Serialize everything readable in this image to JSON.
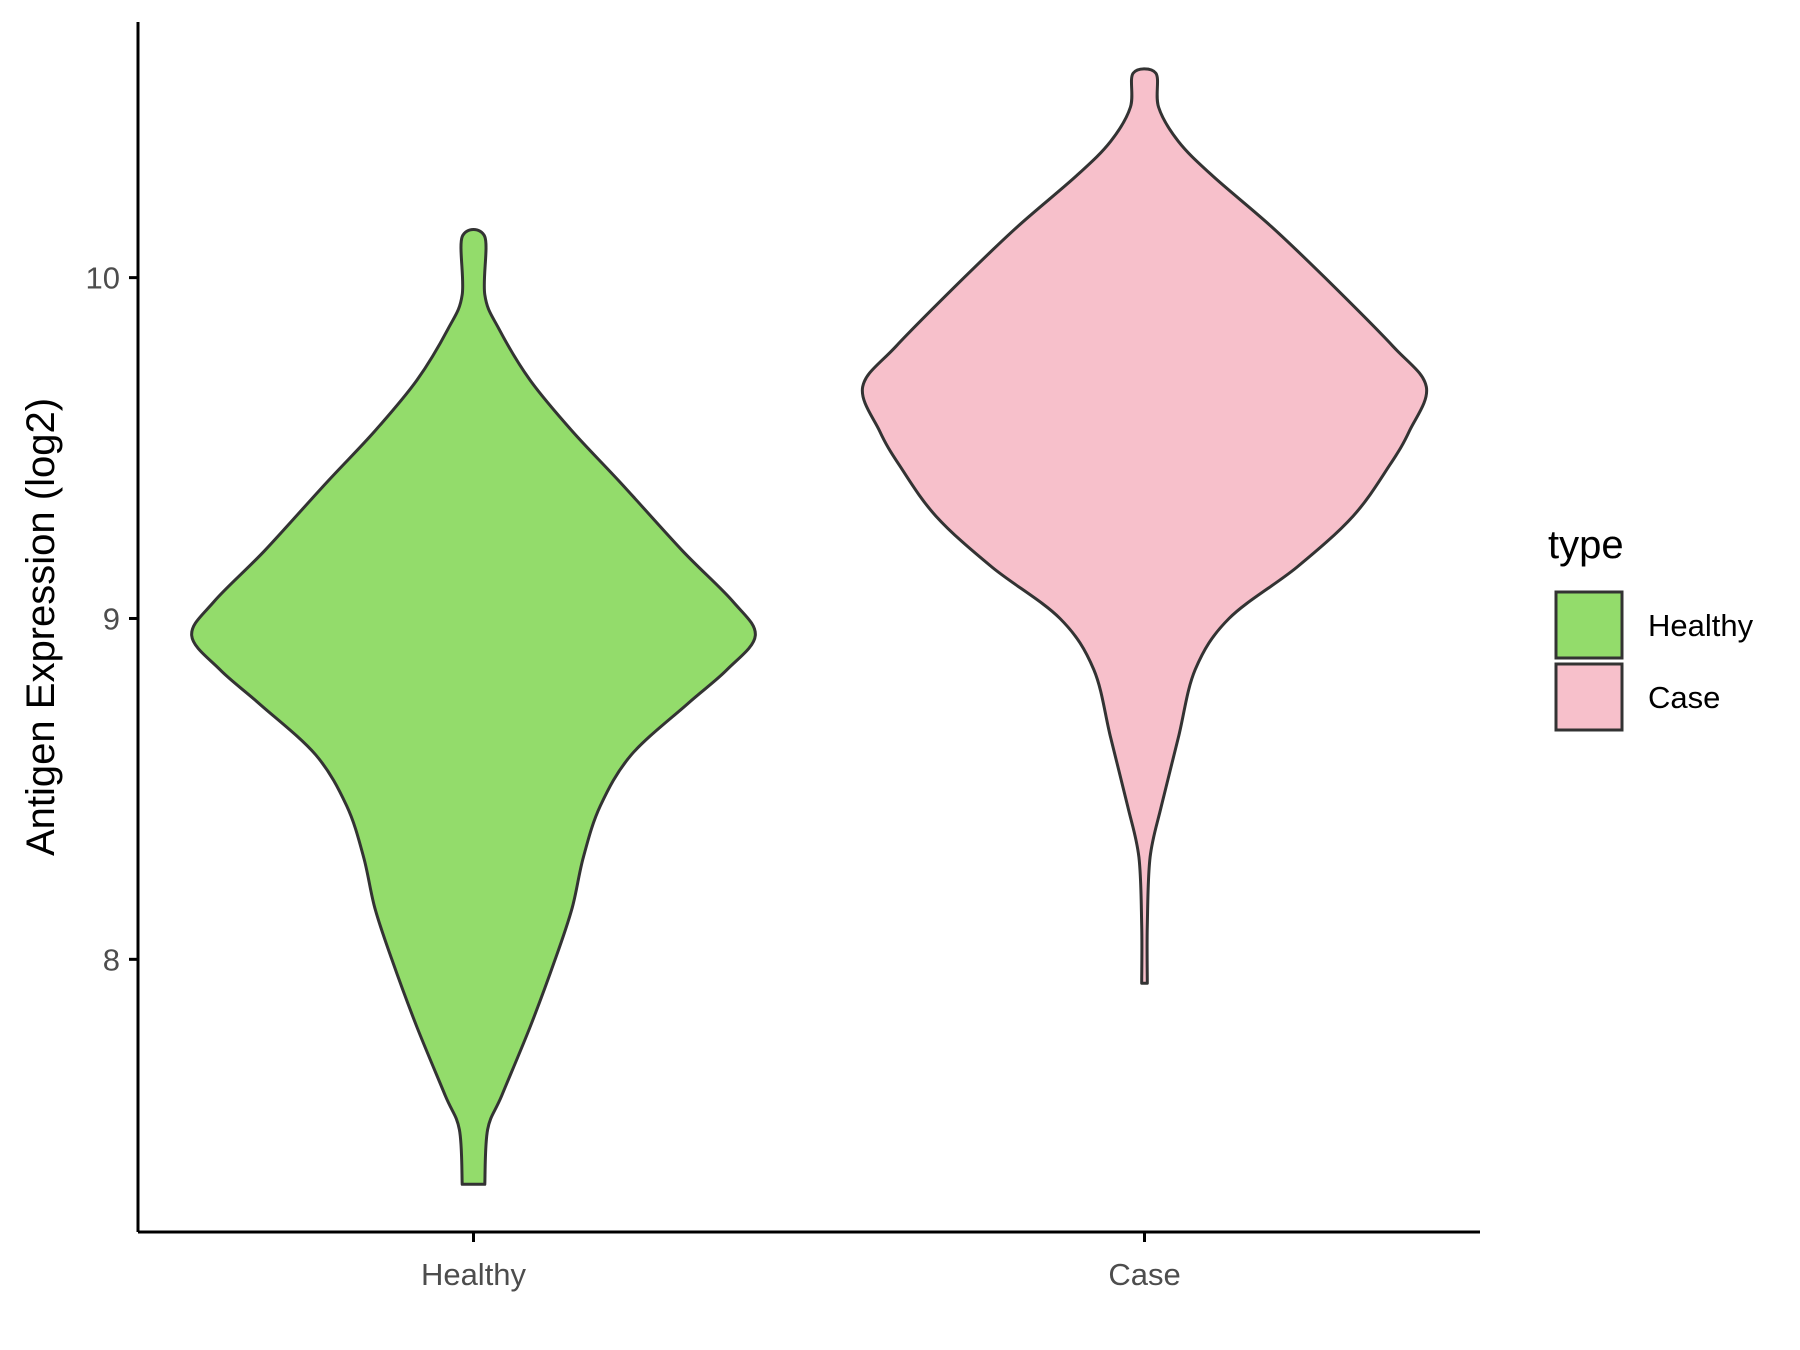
{
  "chart_data": {
    "type": "violin",
    "xlabel": "",
    "ylabel": "Antigen Expression (log2)",
    "y_ticks": [
      "8",
      "9",
      "10"
    ],
    "ylim": [
      7.2,
      10.75
    ],
    "categories": [
      "Healthy",
      "Case"
    ],
    "legend": {
      "title": "type",
      "placement": "right",
      "items": [
        {
          "label": "Healthy",
          "color": "#93dc6b"
        },
        {
          "label": "Case",
          "color": "#f7c0cb"
        }
      ]
    },
    "series": [
      {
        "name": "Healthy",
        "color": "#93dc6b",
        "min": 7.34,
        "max": 10.12,
        "profile": [
          [
            7.34,
            0.04
          ],
          [
            7.5,
            0.05
          ],
          [
            7.6,
            0.1
          ],
          [
            7.8,
            0.2
          ],
          [
            8.0,
            0.29
          ],
          [
            8.15,
            0.35
          ],
          [
            8.3,
            0.39
          ],
          [
            8.45,
            0.45
          ],
          [
            8.6,
            0.56
          ],
          [
            8.75,
            0.76
          ],
          [
            8.85,
            0.9
          ],
          [
            8.95,
            1.0
          ],
          [
            9.05,
            0.92
          ],
          [
            9.2,
            0.74
          ],
          [
            9.4,
            0.52
          ],
          [
            9.55,
            0.35
          ],
          [
            9.7,
            0.2
          ],
          [
            9.85,
            0.09
          ],
          [
            9.95,
            0.04
          ],
          [
            10.12,
            0.04
          ]
        ]
      },
      {
        "name": "Case",
        "color": "#f7c0cb",
        "min": 7.93,
        "max": 10.6,
        "profile": [
          [
            7.93,
            0.01
          ],
          [
            8.1,
            0.01
          ],
          [
            8.3,
            0.02
          ],
          [
            8.45,
            0.06
          ],
          [
            8.65,
            0.12
          ],
          [
            8.85,
            0.18
          ],
          [
            9.0,
            0.3
          ],
          [
            9.15,
            0.54
          ],
          [
            9.3,
            0.74
          ],
          [
            9.45,
            0.87
          ],
          [
            9.55,
            0.94
          ],
          [
            9.68,
            1.0
          ],
          [
            9.8,
            0.88
          ],
          [
            10.0,
            0.64
          ],
          [
            10.15,
            0.45
          ],
          [
            10.3,
            0.24
          ],
          [
            10.4,
            0.12
          ],
          [
            10.5,
            0.05
          ],
          [
            10.6,
            0.04
          ]
        ]
      }
    ]
  }
}
